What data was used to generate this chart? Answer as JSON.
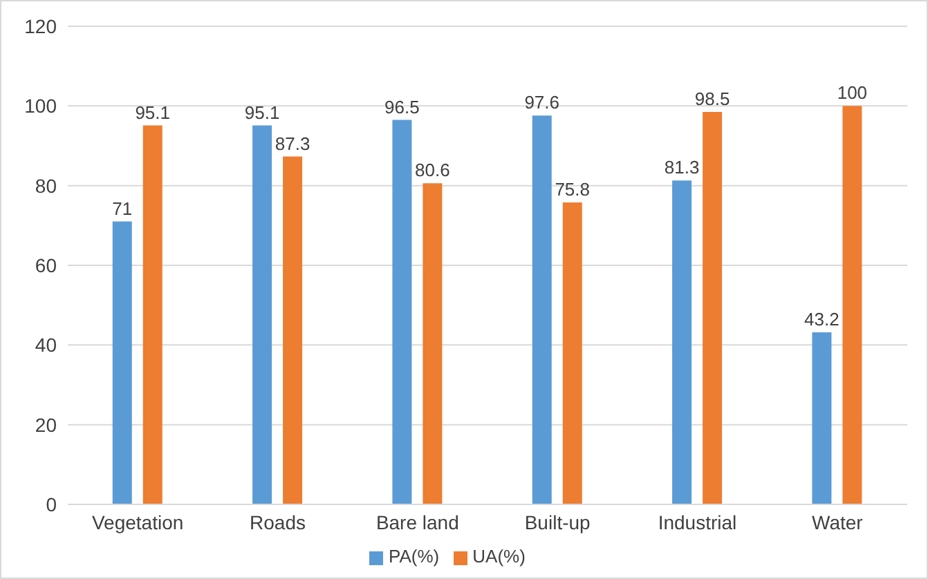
{
  "chart_data": {
    "type": "bar",
    "categories": [
      "Vegetation",
      "Roads",
      "Bare land",
      "Built-up",
      "Industrial",
      "Water"
    ],
    "series": [
      {
        "name": "PA(%)",
        "color": "#5b9bd5",
        "values": [
          71,
          95.1,
          96.5,
          97.6,
          81.3,
          43.2
        ]
      },
      {
        "name": "UA(%)",
        "color": "#ed7d31",
        "values": [
          95.1,
          87.3,
          80.6,
          75.8,
          98.5,
          100
        ]
      }
    ],
    "ylim": [
      0,
      120
    ],
    "yticks": [
      0,
      20,
      40,
      60,
      80,
      100,
      120
    ],
    "grid": "y",
    "legend": "bottom",
    "data_labels": true
  }
}
